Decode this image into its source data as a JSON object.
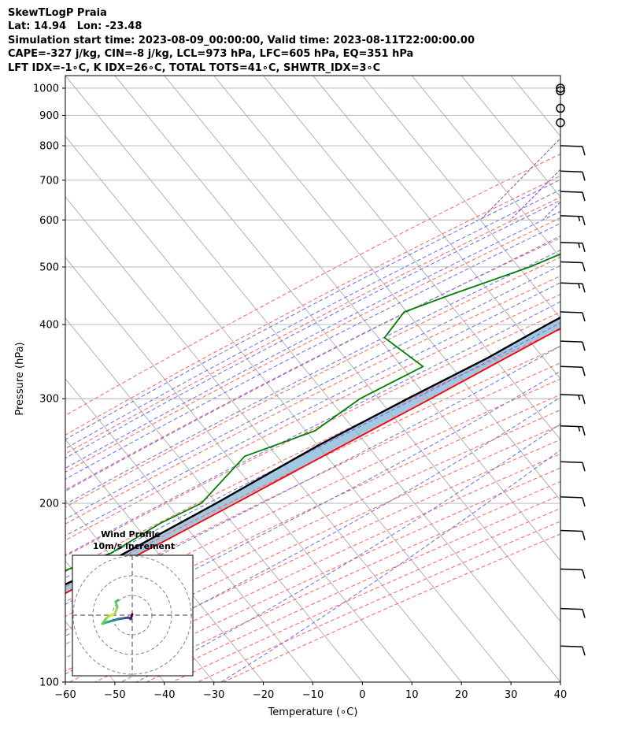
{
  "header": {
    "lines": [
      "SkewTLogP Praia",
      "Lat: 14.94   Lon: -23.48",
      "Simulation start time: 2023-08-09_00:00:00, Valid time: 2023-08-11T22:00:00.00",
      "CAPE=-327 j/kg, CIN=-8 j/kg, LCL=973 hPa, LFC=605 hPa, EQ=351 hPa",
      "LFT IDX=-1∘C, K IDX=26∘C, TOTAL TOTS=41∘C, SHWTR_IDX=3∘C"
    ]
  },
  "colors": {
    "temperature": "#ff0000",
    "dewpoint": "#008000",
    "parcel": "#000000",
    "shade": "#9ec4de",
    "dry_adiabat": "#ff6060",
    "moist_adiabat": "#6a6af0",
    "mixing_ratio": "#9440c0",
    "isotherm": "#aaaaaa"
  },
  "chart_data": {
    "type": "line",
    "title": "",
    "xlabel": "Temperature (∘C)",
    "ylabel": "Pressure (hPa)",
    "xlim": [
      -60,
      40
    ],
    "ylim": [
      1050,
      100
    ],
    "y_scale": "log",
    "skew": true,
    "x_ticks": [
      -60,
      -50,
      -40,
      -30,
      -20,
      -10,
      0,
      10,
      20,
      30,
      40
    ],
    "x_tick_labels": [
      "−60",
      "−50",
      "−40",
      "−30",
      "−20",
      "−10",
      "0",
      "10",
      "20",
      "30",
      "40"
    ],
    "y_ticks": [
      1000,
      900,
      800,
      700,
      600,
      500,
      400,
      300,
      200,
      100
    ],
    "y_tick_labels": [
      "1000",
      "900",
      "800",
      "700",
      "600",
      "500",
      "400",
      "300",
      "200",
      "100"
    ],
    "grid": true,
    "series": [
      {
        "key": "temperature",
        "pressure": [
          1000,
          975,
          950,
          925,
          880,
          850,
          800,
          750,
          700,
          650,
          600,
          550,
          500,
          450,
          400,
          350,
          300,
          250,
          200,
          175,
          150,
          125,
          110,
          100
        ],
        "temp": [
          23.0,
          21.8,
          21.2,
          21.5,
          22.5,
          20.5,
          16.8,
          12.6,
          9.5,
          5.7,
          1.0,
          -2.8,
          -6.9,
          -12.1,
          -17.5,
          -24.7,
          -32.9,
          -43.0,
          -55.1,
          -62.5,
          -71.3,
          -81.2,
          -84.0,
          -85.0
        ]
      },
      {
        "key": "dewpoint",
        "pressure": [
          1000,
          975,
          950,
          925,
          880,
          800,
          750,
          700,
          650,
          600,
          550,
          500,
          450,
          420,
          380,
          340,
          300,
          265,
          240,
          200,
          185,
          165,
          150,
          135,
          120,
          110,
          100
        ],
        "temp": [
          22.0,
          21.5,
          20.5,
          20.7,
          19.8,
          -1.1,
          -4.0,
          -9.0,
          -13.9,
          -19.5,
          -26.8,
          -34.7,
          -45.8,
          -52.6,
          -52.3,
          -39.8,
          -47.2,
          -51.0,
          -61.0,
          -62.0,
          -67.0,
          -72.0,
          -81.0,
          -87.0,
          -93.0,
          -96.0,
          -98.0
        ]
      },
      {
        "key": "parcel",
        "pressure": [
          1000,
          973,
          900,
          800,
          700,
          600,
          500,
          400,
          351,
          300,
          250,
          200,
          150,
          125,
          100
        ],
        "temp": [
          25.5,
          23.6,
          20.0,
          14.8,
          8.4,
          0.5,
          -9.4,
          -21.6,
          -28.2,
          -37.6,
          -48.0,
          -59.0,
          -74.3,
          -86.5,
          -100.0
        ]
      }
    ],
    "shade_between": [
      "parcel",
      "temperature"
    ],
    "wind_barbs": {
      "pressure": [
        1000,
        990,
        925,
        875,
        800,
        725,
        670,
        610,
        550,
        510,
        470,
        420,
        375,
        340,
        305,
        270,
        235,
        205,
        180,
        155,
        133,
        115
      ],
      "speed_kt": [
        0,
        0,
        0,
        0,
        10,
        10,
        10,
        15,
        15,
        10,
        15,
        10,
        10,
        10,
        15,
        15,
        10,
        10,
        10,
        10,
        10,
        10
      ]
    }
  },
  "hodograph": {
    "title": "Wind Profile",
    "subtitle": "10m/s increment",
    "rings": 3,
    "colormap": "viridis"
  }
}
